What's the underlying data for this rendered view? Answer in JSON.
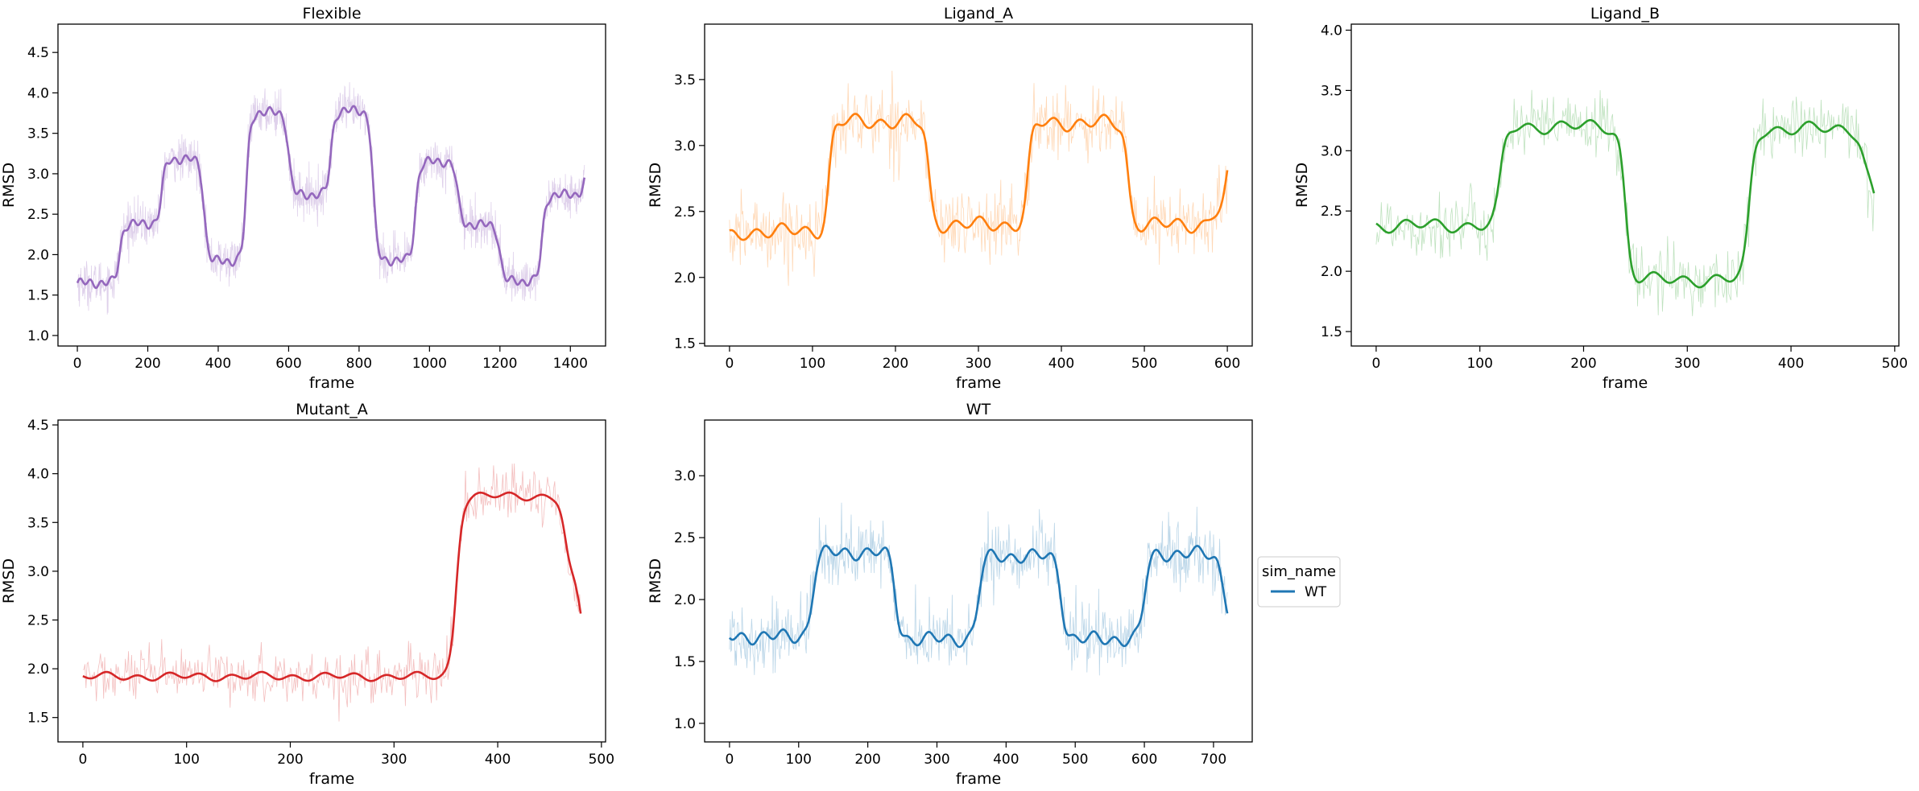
{
  "chart_data": [
    {
      "type": "line",
      "title": "Flexible",
      "xlabel": "frame",
      "ylabel": "RMSD",
      "color": "#9467bd",
      "xlim": [
        -55,
        1500
      ],
      "ylim": [
        0.87,
        4.85
      ],
      "xticks": [
        0,
        200,
        400,
        600,
        800,
        1000,
        1200,
        1400
      ],
      "yticks": [
        1.0,
        1.5,
        2.0,
        2.5,
        3.0,
        3.5,
        4.0,
        4.5
      ],
      "x_max": 1440,
      "segments": [
        {
          "x": 0,
          "y": 1.65
        },
        {
          "x": 120,
          "y": 2.38
        },
        {
          "x": 240,
          "y": 3.18
        },
        {
          "x": 360,
          "y": 1.92
        },
        {
          "x": 480,
          "y": 3.76
        },
        {
          "x": 600,
          "y": 2.74
        },
        {
          "x": 720,
          "y": 3.78
        },
        {
          "x": 840,
          "y": 1.93
        },
        {
          "x": 960,
          "y": 3.15
        },
        {
          "x": 1080,
          "y": 2.37
        },
        {
          "x": 1200,
          "y": 1.67
        },
        {
          "x": 1320,
          "y": 2.74
        },
        {
          "x": 1440,
          "y": 3.1
        }
      ],
      "noise": 0.25,
      "wiggle": 0.04,
      "ramp": 18
    },
    {
      "type": "line",
      "title": "Ligand_A",
      "xlabel": "frame",
      "ylabel": "RMSD",
      "color": "#ff7f0e",
      "xlim": [
        -30,
        630
      ],
      "ylim": [
        1.48,
        3.92
      ],
      "xticks": [
        0,
        100,
        200,
        300,
        400,
        500,
        600
      ],
      "yticks": [
        1.5,
        2.0,
        2.5,
        3.0,
        3.5
      ],
      "x_max": 600,
      "segments": [
        {
          "x": 0,
          "y": 2.3
        },
        {
          "x": 15,
          "y": 2.35
        },
        {
          "x": 120,
          "y": 3.18
        },
        {
          "x": 240,
          "y": 2.4
        },
        {
          "x": 360,
          "y": 3.17
        },
        {
          "x": 480,
          "y": 2.4
        },
        {
          "x": 580,
          "y": 2.5
        },
        {
          "x": 600,
          "y": 3.0
        }
      ],
      "noise": 0.25,
      "wiggle": 0.04,
      "ramp": 9
    },
    {
      "type": "line",
      "title": "Ligand_B",
      "xlabel": "frame",
      "ylabel": "RMSD",
      "color": "#2ca02c",
      "xlim": [
        -24,
        504
      ],
      "ylim": [
        1.38,
        4.05
      ],
      "xticks": [
        0,
        100,
        200,
        300,
        400,
        500
      ],
      "yticks": [
        1.5,
        2.0,
        2.5,
        3.0,
        3.5,
        4.0
      ],
      "x_max": 480,
      "segments": [
        {
          "x": 0,
          "y": 2.38
        },
        {
          "x": 120,
          "y": 3.2
        },
        {
          "x": 240,
          "y": 1.93
        },
        {
          "x": 360,
          "y": 3.18
        },
        {
          "x": 470,
          "y": 2.75
        },
        {
          "x": 480,
          "y": 2.45
        }
      ],
      "noise": 0.25,
      "wiggle": 0.04,
      "ramp": 9
    },
    {
      "type": "line",
      "title": "Mutant_A",
      "xlabel": "frame",
      "ylabel": "RMSD",
      "color": "#d62728",
      "xlim": [
        -24,
        504
      ],
      "ylim": [
        1.25,
        4.55
      ],
      "xticks": [
        0,
        100,
        200,
        300,
        400,
        500
      ],
      "yticks": [
        1.5,
        2.0,
        2.5,
        3.0,
        3.5,
        4.0,
        4.5
      ],
      "x_max": 480,
      "segments": [
        {
          "x": 0,
          "y": 1.92
        },
        {
          "x": 360,
          "y": 3.77
        },
        {
          "x": 465,
          "y": 2.9
        },
        {
          "x": 480,
          "y": 2.2
        }
      ],
      "noise": 0.25,
      "wiggle": 0.03,
      "ramp": 9
    },
    {
      "type": "line",
      "title": "WT",
      "xlabel": "frame",
      "ylabel": "RMSD",
      "color": "#1f77b4",
      "xlim": [
        -36,
        756
      ],
      "ylim": [
        0.85,
        3.45
      ],
      "xticks": [
        0,
        100,
        200,
        300,
        400,
        500,
        600,
        700
      ],
      "yticks": [
        1.0,
        1.5,
        2.0,
        2.5,
        3.0
      ],
      "x_max": 720,
      "segments": [
        {
          "x": 0,
          "y": 1.7
        },
        {
          "x": 120,
          "y": 2.38
        },
        {
          "x": 240,
          "y": 1.68
        },
        {
          "x": 360,
          "y": 2.35
        },
        {
          "x": 480,
          "y": 1.68
        },
        {
          "x": 600,
          "y": 2.37
        },
        {
          "x": 710,
          "y": 2.1
        },
        {
          "x": 720,
          "y": 1.75
        }
      ],
      "noise": 0.25,
      "wiggle": 0.04,
      "ramp": 12
    }
  ],
  "legend": {
    "title": "sim_name",
    "entries": [
      {
        "label": "WT",
        "color": "#1f77b4"
      }
    ]
  }
}
